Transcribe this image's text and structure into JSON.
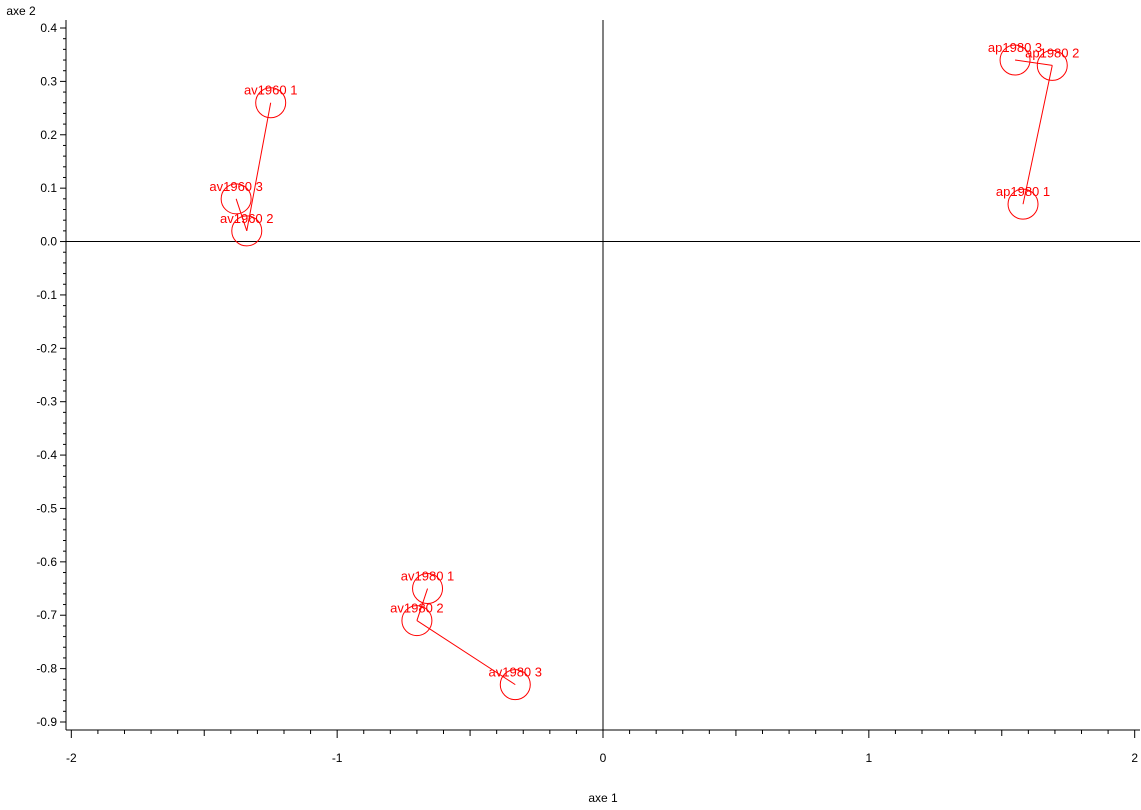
{
  "chart_data": {
    "type": "scatter",
    "xlabel": "axe 1",
    "ylabel": "axe 2",
    "xlim": [
      -2.02,
      2.02
    ],
    "ylim": [
      -0.915,
      0.415
    ],
    "x_ticks": [
      -2,
      -1,
      0,
      1,
      2
    ],
    "y_ticks": [
      0.4,
      0.3,
      0.2,
      0.1,
      0.0,
      -0.1,
      -0.2,
      -0.3,
      -0.4,
      -0.5,
      -0.6,
      -0.7,
      -0.8,
      -0.9
    ],
    "x_tick_labels": [
      "-2",
      "-1",
      "0",
      "1",
      "2"
    ],
    "y_tick_labels": [
      "0.4",
      "0.3",
      "0.2",
      "0.1",
      "0.0",
      "-0.1",
      "-0.2",
      "-0.3",
      "-0.4",
      "-0.5",
      "-0.6",
      "-0.7",
      "-0.8",
      "-0.9"
    ],
    "grid": false,
    "zero_lines": true,
    "color": "#ff0000",
    "points": [
      {
        "label": "av1960 1",
        "x": -1.25,
        "y": 0.26
      },
      {
        "label": "av1960 2",
        "x": -1.34,
        "y": 0.02
      },
      {
        "label": "av1960 3",
        "x": -1.38,
        "y": 0.08
      },
      {
        "label": "av1980 1",
        "x": -0.66,
        "y": -0.65
      },
      {
        "label": "av1980 2",
        "x": -0.7,
        "y": -0.71
      },
      {
        "label": "av1980 3",
        "x": -0.33,
        "y": -0.83
      },
      {
        "label": "ap1980 1",
        "x": 1.58,
        "y": 0.07
      },
      {
        "label": "ap1980 2",
        "x": 1.69,
        "y": 0.33
      },
      {
        "label": "ap1980 3",
        "x": 1.55,
        "y": 0.34
      }
    ],
    "connections": [
      [
        "av1960 1",
        "av1960 2"
      ],
      [
        "av1960 2",
        "av1960 3"
      ],
      [
        "av1980 1",
        "av1980 2"
      ],
      [
        "av1980 2",
        "av1980 3"
      ],
      [
        "ap1980 1",
        "ap1980 2"
      ],
      [
        "ap1980 2",
        "ap1980 3"
      ]
    ]
  }
}
